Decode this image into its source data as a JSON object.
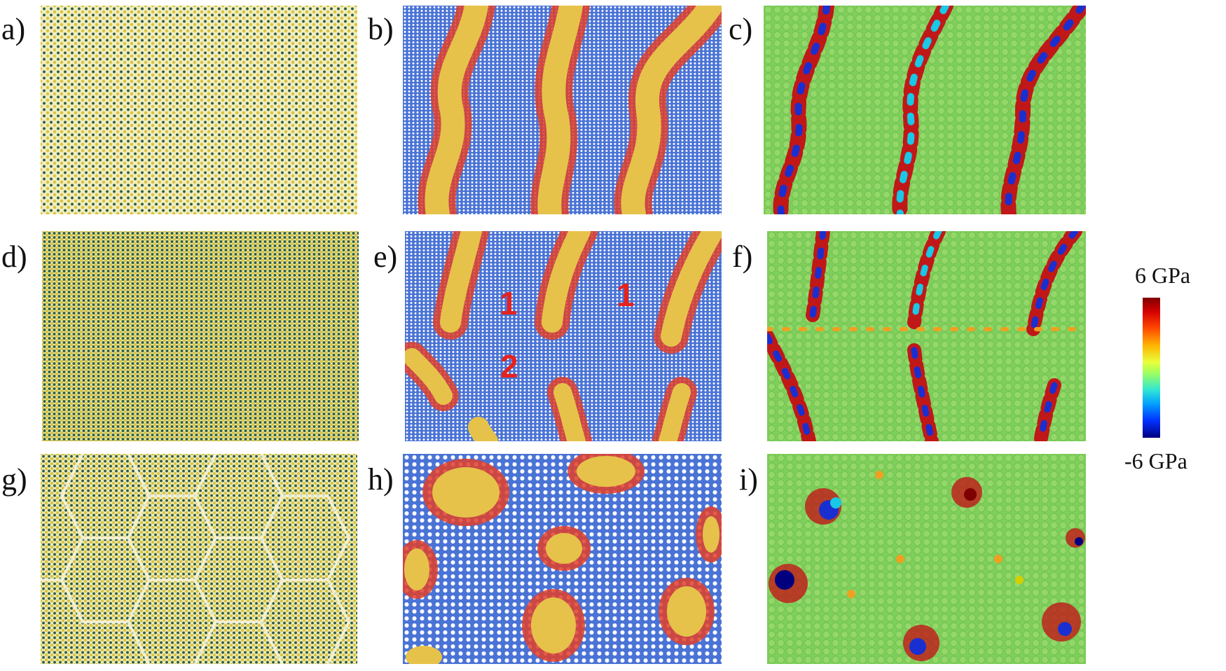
{
  "panels": [
    {
      "id": "a",
      "label": "a)"
    },
    {
      "id": "b",
      "label": "b)"
    },
    {
      "id": "c",
      "label": "c)"
    },
    {
      "id": "d",
      "label": "d)"
    },
    {
      "id": "e",
      "label": "e)"
    },
    {
      "id": "f",
      "label": "f)"
    },
    {
      "id": "g",
      "label": "g)"
    },
    {
      "id": "h",
      "label": "h)"
    },
    {
      "id": "i",
      "label": "i)"
    }
  ],
  "region_numbers": [
    "1",
    "1",
    "2"
  ],
  "colorbar": {
    "max_label": "6 GPa",
    "min_label": "-6 GPa",
    "colors": [
      "#7f0000",
      "#ff4a00",
      "#e8ff3c",
      "#2fe6d4",
      "#0030ff",
      "#00007f"
    ]
  },
  "colors": {
    "atom_blue": "#4a73d6",
    "transformed_yellow": "#e6c24a",
    "interface_red": "#e0402a",
    "stress_green": "#7fcf5c"
  }
}
